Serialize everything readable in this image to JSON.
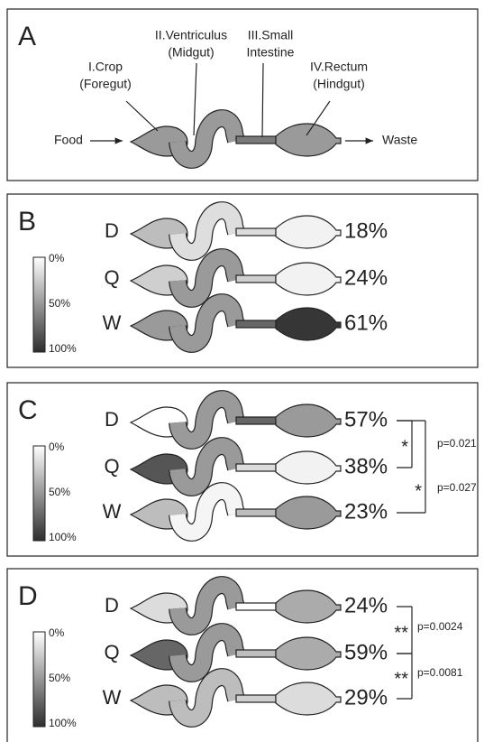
{
  "panel_a": {
    "letter": "A",
    "labels": [
      [
        "I.Crop",
        "(Foregut)"
      ],
      [
        "II.Ventriculus",
        "(Midgut)"
      ],
      [
        "III.Small",
        "Intestine"
      ],
      [
        "IV.Rectum",
        "(Hindgut)"
      ]
    ],
    "input": "Food",
    "output": "Waste",
    "fills": [
      "#9a9a9a",
      "#9a9a9a",
      "#7a7a7a",
      "#9a9a9a"
    ]
  },
  "panels": [
    {
      "letter": "B",
      "legend": [
        "0%",
        "50%",
        "100%"
      ],
      "rows": [
        {
          "label": "D",
          "percent": "18%",
          "fills": [
            "#bdbdbd",
            "#dedede",
            "#dcdcdc",
            "#f2f2f2"
          ]
        },
        {
          "label": "Q",
          "percent": "24%",
          "fills": [
            "#cfcfcf",
            "#9a9a9a",
            "#cfcfcf",
            "#f2f2f2"
          ]
        },
        {
          "label": "W",
          "percent": "61%",
          "fills": [
            "#9a9a9a",
            "#9a9a9a",
            "#666666",
            "#363636"
          ]
        }
      ],
      "stats": []
    },
    {
      "letter": "C",
      "legend": [
        "0%",
        "50%",
        "100%"
      ],
      "rows": [
        {
          "label": "D",
          "percent": "57%",
          "fills": [
            "#ffffff",
            "#9a9a9a",
            "#666666",
            "#9a9a9a"
          ]
        },
        {
          "label": "Q",
          "percent": "38%",
          "fills": [
            "#555555",
            "#9a9a9a",
            "#dcdcdc",
            "#f2f2f2"
          ]
        },
        {
          "label": "W",
          "percent": "23%",
          "fills": [
            "#bdbdbd",
            "#f5f5f5",
            "#bdbdbd",
            "#9a9a9a"
          ]
        }
      ],
      "stats": [
        {
          "star": "*",
          "p": "p=0.021"
        },
        {
          "star": "*",
          "p": "p=0.027"
        }
      ]
    },
    {
      "letter": "D",
      "legend": [
        "0%",
        "50%",
        "100%"
      ],
      "rows": [
        {
          "label": "D",
          "percent": "24%",
          "fills": [
            "#dcdcdc",
            "#9a9a9a",
            "#ffffff",
            "#ababab"
          ]
        },
        {
          "label": "Q",
          "percent": "59%",
          "fills": [
            "#666666",
            "#9a9a9a",
            "#bdbdbd",
            "#ababab"
          ]
        },
        {
          "label": "W",
          "percent": "29%",
          "fills": [
            "#bdbdbd",
            "#bdbdbd",
            "#cfcfcf",
            "#dcdcdc"
          ]
        }
      ],
      "stats": [
        {
          "star": "**",
          "p": "p=0.0024"
        },
        {
          "star": "**",
          "p": "p=0.0081"
        }
      ]
    }
  ]
}
